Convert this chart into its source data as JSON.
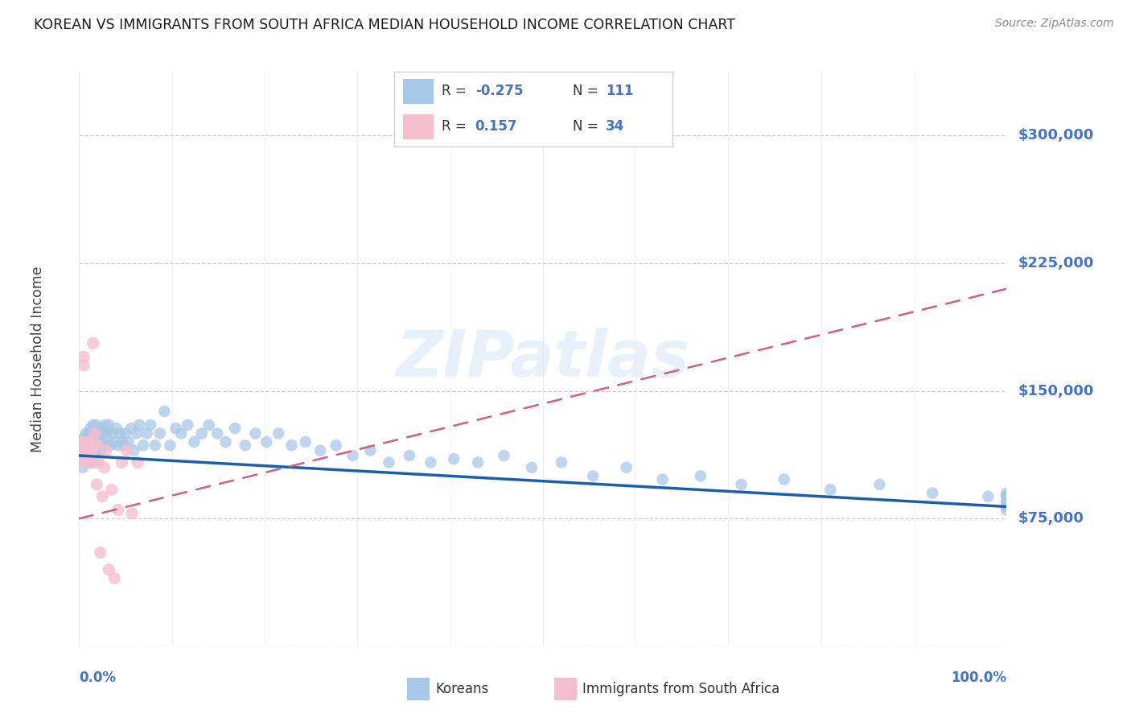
{
  "title": "KOREAN VS IMMIGRANTS FROM SOUTH AFRICA MEDIAN HOUSEHOLD INCOME CORRELATION CHART",
  "source": "Source: ZipAtlas.com",
  "ylabel": "Median Household Income",
  "ymin": 0,
  "ymax": 337500,
  "xmin": 0.0,
  "xmax": 1.0,
  "korean_color": "#a8c8e8",
  "korean_line_color": "#1a5fa8",
  "south_africa_color": "#f5bfd0",
  "south_africa_line_color": "#d06080",
  "watermark": "ZIPatlas",
  "background_color": "#ffffff",
  "grid_color": "#c8c8c8",
  "axis_label_color": "#4472c4",
  "ytick_values": [
    0,
    75000,
    150000,
    225000,
    300000
  ],
  "ytick_labels": [
    "",
    "$75,000",
    "$150,000",
    "$225,000",
    "$300,000"
  ],
  "korean_trend_x": [
    0.0,
    1.0
  ],
  "korean_trend_y": [
    112000,
    82000
  ],
  "sa_trend_x": [
    0.0,
    1.0
  ],
  "sa_trend_y": [
    75000,
    210000
  ],
  "korean_scatter_x": [
    0.003,
    0.004,
    0.005,
    0.005,
    0.006,
    0.006,
    0.007,
    0.007,
    0.008,
    0.008,
    0.009,
    0.009,
    0.01,
    0.01,
    0.011,
    0.011,
    0.012,
    0.012,
    0.013,
    0.013,
    0.014,
    0.014,
    0.015,
    0.015,
    0.016,
    0.016,
    0.017,
    0.017,
    0.018,
    0.018,
    0.019,
    0.02,
    0.021,
    0.022,
    0.023,
    0.024,
    0.025,
    0.026,
    0.027,
    0.028,
    0.029,
    0.03,
    0.032,
    0.034,
    0.036,
    0.038,
    0.04,
    0.042,
    0.044,
    0.046,
    0.048,
    0.05,
    0.053,
    0.056,
    0.059,
    0.062,
    0.065,
    0.069,
    0.073,
    0.077,
    0.082,
    0.087,
    0.092,
    0.098,
    0.104,
    0.11,
    0.117,
    0.124,
    0.132,
    0.14,
    0.149,
    0.158,
    0.168,
    0.179,
    0.19,
    0.202,
    0.215,
    0.229,
    0.244,
    0.26,
    0.277,
    0.295,
    0.314,
    0.334,
    0.356,
    0.379,
    0.404,
    0.43,
    0.458,
    0.488,
    0.52,
    0.554,
    0.59,
    0.629,
    0.67,
    0.714,
    0.76,
    0.81,
    0.863,
    0.92,
    0.98,
    1.0,
    1.0,
    1.0,
    1.0,
    1.0,
    1.0,
    1.0,
    1.0,
    1.0,
    1.0
  ],
  "korean_scatter_y": [
    110000,
    105000,
    118000,
    122000,
    108000,
    115000,
    125000,
    112000,
    118000,
    120000,
    108000,
    115000,
    125000,
    110000,
    120000,
    115000,
    128000,
    118000,
    112000,
    125000,
    108000,
    120000,
    130000,
    115000,
    118000,
    125000,
    120000,
    115000,
    122000,
    130000,
    115000,
    118000,
    125000,
    120000,
    115000,
    128000,
    118000,
    125000,
    120000,
    130000,
    118000,
    125000,
    130000,
    118000,
    125000,
    120000,
    128000,
    118000,
    125000,
    120000,
    118000,
    125000,
    120000,
    128000,
    115000,
    125000,
    130000,
    118000,
    125000,
    130000,
    118000,
    125000,
    138000,
    118000,
    128000,
    125000,
    130000,
    120000,
    125000,
    130000,
    125000,
    120000,
    128000,
    118000,
    125000,
    120000,
    125000,
    118000,
    120000,
    115000,
    118000,
    112000,
    115000,
    108000,
    112000,
    108000,
    110000,
    108000,
    112000,
    105000,
    108000,
    100000,
    105000,
    98000,
    100000,
    95000,
    98000,
    92000,
    95000,
    90000,
    88000,
    90000,
    88000,
    85000,
    88000,
    85000,
    88000,
    82000,
    85000,
    80000,
    82000
  ],
  "sa_scatter_x": [
    0.003,
    0.004,
    0.005,
    0.005,
    0.006,
    0.006,
    0.007,
    0.007,
    0.008,
    0.009,
    0.01,
    0.011,
    0.012,
    0.013,
    0.014,
    0.015,
    0.016,
    0.017,
    0.018,
    0.019,
    0.02,
    0.021,
    0.023,
    0.025,
    0.027,
    0.029,
    0.032,
    0.035,
    0.038,
    0.042,
    0.046,
    0.051,
    0.057,
    0.063
  ],
  "sa_scatter_y": [
    115000,
    120000,
    165000,
    170000,
    115000,
    108000,
    120000,
    115000,
    118000,
    108000,
    115000,
    120000,
    108000,
    115000,
    112000,
    178000,
    118000,
    125000,
    108000,
    95000,
    118000,
    108000,
    55000,
    88000,
    105000,
    115000,
    45000,
    92000,
    40000,
    80000,
    108000,
    115000,
    78000,
    108000
  ]
}
